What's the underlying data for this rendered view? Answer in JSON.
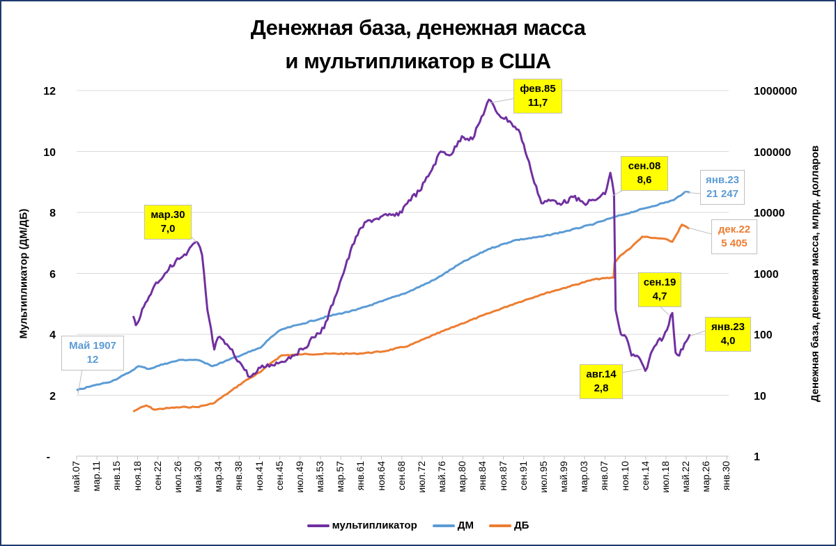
{
  "title_line1": "Денежная база, денежная масса",
  "title_line2": "и мультипликатор в США",
  "left_axis_label": "Мультипликатор (ДМ/ДБ)",
  "right_axis_label": "Денежная база, денежная масса, млрд. долларов",
  "left_ticks": [
    "12",
    "10",
    "8",
    "6",
    "4",
    "2",
    "-"
  ],
  "right_ticks": [
    "1000000",
    "100000",
    "10000",
    "1000",
    "100",
    "10",
    "1"
  ],
  "x_ticks": [
    "май.07",
    "мар.11",
    "янв.15",
    "ноя.18",
    "сен.22",
    "июл.26",
    "май.30",
    "мар.34",
    "янв.38",
    "ноя.41",
    "сен.45",
    "июл.49",
    "май.53",
    "мар.57",
    "янв.61",
    "ноя.64",
    "сен.68",
    "июл.72",
    "май.76",
    "мар.80",
    "янв.84",
    "ноя.87",
    "сен.91",
    "июл.95",
    "май.99",
    "мар.03",
    "янв.07",
    "ноя.10",
    "сен.14",
    "июл.18",
    "май.22",
    "мар.26",
    "янв.30"
  ],
  "legend": {
    "multiplier": "мультипликатор",
    "dm": "ДМ",
    "db": "ДБ"
  },
  "colors": {
    "multiplier": "#7030a0",
    "dm": "#5b9bd5",
    "db": "#ed7d31",
    "callout_fill": "#ffff00",
    "frame": "#1f3a6e",
    "grid": "#d9d9d9"
  },
  "annotations": {
    "dm_start": {
      "line1": "Май 1907",
      "line2": "12"
    },
    "mult_1930": {
      "line1": "мар.30",
      "line2": "7,0"
    },
    "mult_1985": {
      "line1": "фев.85",
      "line2": "11,7"
    },
    "mult_2008": {
      "line1": "сен.08",
      "line2": "8,6"
    },
    "dm_2023": {
      "line1": "янв.23",
      "line2": "21 247"
    },
    "db_2022": {
      "line1": "дек.22",
      "line2": "5 405"
    },
    "mult_2019": {
      "line1": "сен.19",
      "line2": "4,7"
    },
    "mult_2014": {
      "line1": "авг.14",
      "line2": "2,8"
    },
    "mult_2023": {
      "line1": "янв.23",
      "line2": "4,0"
    }
  },
  "chart_data": {
    "type": "line",
    "title": "Денежная база, денежная масса и мультипликатор в США",
    "xlabel": "",
    "ylabel": "Мультипликатор (ДМ/ДБ)",
    "ylabel_right": "Денежная база, денежная масса, млрд. долларов",
    "ylim": [
      0,
      12
    ],
    "ylim_right_log": [
      1,
      1000000
    ],
    "grid": true,
    "legend_position": "bottom",
    "series": [
      {
        "name": "мультипликатор",
        "axis": "left",
        "x": [
          1918.0,
          1918.5,
          1920,
          1922,
          1924,
          1926,
          1928,
          1929,
          1930.2,
          1931,
          1932,
          1933.3,
          1934,
          1936,
          1938,
          1940,
          1941,
          1942,
          1944,
          1946,
          1948,
          1950,
          1952,
          1954,
          1956,
          1958,
          1960,
          1962,
          1964,
          1966,
          1968,
          1970,
          1972,
          1974,
          1976,
          1978,
          1980,
          1982,
          1985.1,
          1987,
          1989,
          1991,
          1993,
          1995,
          1997,
          1999,
          2001,
          2003,
          2005,
          2007,
          2008.0,
          2008.7,
          2009,
          2010,
          2011,
          2012,
          2013,
          2014.6,
          2016,
          2017,
          2018,
          2019.7,
          2020.3,
          2021,
          2022,
          2023.0
        ],
        "values": [
          4.6,
          4.3,
          4.9,
          5.6,
          6.0,
          6.4,
          6.6,
          6.9,
          7.0,
          6.6,
          4.8,
          3.5,
          3.9,
          3.6,
          3.1,
          2.6,
          2.7,
          2.9,
          3.0,
          3.1,
          3.3,
          3.5,
          3.9,
          4.2,
          5.2,
          6.2,
          7.2,
          7.7,
          7.8,
          7.9,
          7.9,
          8.4,
          8.7,
          9.3,
          10.0,
          9.9,
          10.5,
          10.4,
          11.7,
          11.2,
          11.0,
          10.6,
          9.4,
          8.3,
          8.4,
          8.3,
          8.5,
          8.3,
          8.4,
          8.6,
          9.3,
          8.6,
          4.8,
          4.0,
          3.9,
          3.3,
          3.3,
          2.8,
          3.5,
          3.8,
          3.9,
          4.7,
          3.4,
          3.3,
          3.7,
          4.0
        ]
      },
      {
        "name": "ДМ",
        "axis": "right",
        "x": [
          1907.33,
          1910,
          1914,
          1917,
          1919,
          1921,
          1924,
          1927,
          1930,
          1932,
          1933,
          1936,
          1939,
          1942,
          1944,
          1946,
          1950,
          1955,
          1960,
          1965,
          1970,
          1975,
          1980,
          1985,
          1990,
          1995,
          2000,
          2005,
          2008,
          2010,
          2015,
          2020,
          2022,
          2023.0
        ],
        "values": [
          12,
          14,
          17,
          23,
          30,
          27,
          33,
          38,
          38,
          33,
          30,
          38,
          48,
          60,
          90,
          120,
          150,
          200,
          250,
          350,
          500,
          800,
          1500,
          2500,
          3500,
          4000,
          5000,
          6500,
          8000,
          9000,
          12000,
          16000,
          21500,
          21247
        ]
      },
      {
        "name": "ДБ",
        "axis": "right",
        "x": [
          1918.0,
          1919,
          1920.5,
          1922,
          1925,
          1928,
          1930,
          1933,
          1936,
          1939,
          1942,
          1944,
          1946,
          1950,
          1955,
          1960,
          1965,
          1970,
          1975,
          1980,
          1985,
          1990,
          1995,
          2000,
          2005,
          2008.6,
          2008.8,
          2010,
          2012,
          2014,
          2016,
          2018,
          2019.7,
          2021.5,
          2022.9
        ],
        "values": [
          5.4,
          6.0,
          6.8,
          5.8,
          6.2,
          6.4,
          6.4,
          7.3,
          11,
          17,
          24,
          34,
          45,
          47,
          48,
          48,
          52,
          65,
          100,
          150,
          220,
          320,
          450,
          600,
          800,
          850,
          1500,
          2000,
          2700,
          4000,
          3800,
          3700,
          3300,
          6300,
          5405
        ]
      }
    ],
    "annotations": [
      {
        "series": "ДМ",
        "date": "Май 1907",
        "value": "12"
      },
      {
        "series": "мультипликатор",
        "date": "мар.30",
        "value": "7,0"
      },
      {
        "series": "мультипликатор",
        "date": "фев.85",
        "value": "11,7"
      },
      {
        "series": "мультипликатор",
        "date": "сен.08",
        "value": "8,6"
      },
      {
        "series": "ДМ",
        "date": "янв.23",
        "value": "21 247"
      },
      {
        "series": "ДБ",
        "date": "дек.22",
        "value": "5 405"
      },
      {
        "series": "мультипликатор",
        "date": "сен.19",
        "value": "4,7"
      },
      {
        "series": "мультипликатор",
        "date": "авг.14",
        "value": "2,8"
      },
      {
        "series": "мультипликатор",
        "date": "янв.23",
        "value": "4,0"
      }
    ]
  }
}
